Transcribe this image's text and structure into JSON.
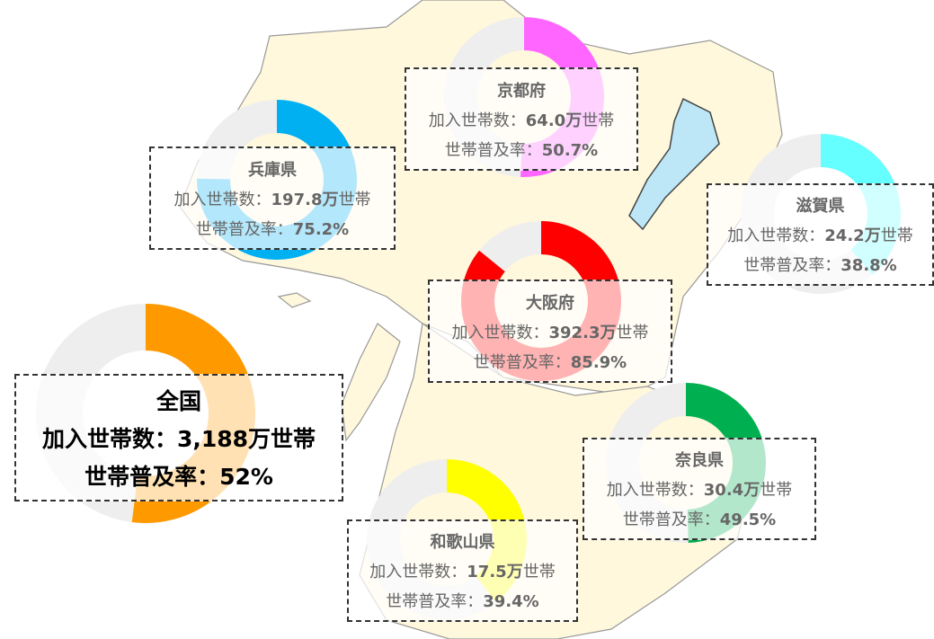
{
  "national": {
    "name": "全国",
    "households_line": "加入世帯数：3,188万世帯",
    "rate_label": "世帯普及率：",
    "rate": 52,
    "rate_text": "52%",
    "color": "#ff9900"
  },
  "regions": [
    {
      "name": "京都府",
      "households_label": "加入世帯数：",
      "households": "64.0万",
      "households_unit": "世帯",
      "rate_label": "世帯普及率：",
      "rate": 50.7,
      "rate_text": "50.7%",
      "color": "#ff66ff"
    },
    {
      "name": "兵庫県",
      "households_label": "加入世帯数：",
      "households": "197.8万",
      "households_unit": "世帯",
      "rate_label": "世帯普及率：",
      "rate": 75.2,
      "rate_text": "75.2%",
      "color": "#00b0f0"
    },
    {
      "name": "滋賀県",
      "households_label": "加入世帯数：",
      "households": "24.2万",
      "households_unit": "世帯",
      "rate_label": "世帯普及率：",
      "rate": 38.8,
      "rate_text": "38.8%",
      "color": "#66ffff"
    },
    {
      "name": "大阪府",
      "households_label": "加入世帯数：",
      "households": "392.3万",
      "households_unit": "世帯",
      "rate_label": "世帯普及率：",
      "rate": 85.9,
      "rate_text": "85.9%",
      "color": "#ff0000"
    },
    {
      "name": "奈良県",
      "households_label": "加入世帯数：",
      "households": "30.4万",
      "households_unit": "世帯",
      "rate_label": "世帯普及率：",
      "rate": 49.5,
      "rate_text": "49.5%",
      "color": "#00b050"
    },
    {
      "name": "和歌山県",
      "households_label": "加入世帯数：",
      "households": "17.5万",
      "households_unit": "世帯",
      "rate_label": "世帯普及率：",
      "rate": 39.4,
      "rate_text": "39.4%",
      "color": "#ffff00"
    }
  ]
}
